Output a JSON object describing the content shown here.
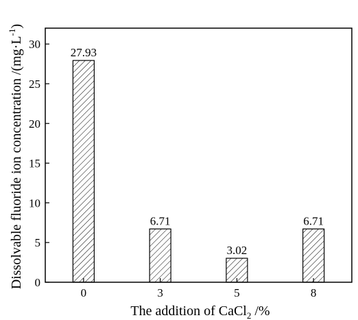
{
  "chart_data": {
    "type": "bar",
    "categories": [
      "0",
      "3",
      "5",
      "8"
    ],
    "values": [
      27.93,
      6.71,
      3.02,
      6.71
    ],
    "data_labels": [
      "27.93",
      "6.71",
      "3.02",
      "6.71"
    ],
    "title": "",
    "xlabel": {
      "prefix": "The addition of CaCl",
      "subscript": "2",
      "suffix": " /%"
    },
    "ylabel": {
      "main": "Dissolvable fluoride ion concentration /(mg·L",
      "superscript": "-1",
      "close": ")"
    },
    "ylim": [
      0,
      32
    ],
    "yticks": [
      "0",
      "5",
      "10",
      "15",
      "20",
      "25",
      "30"
    ],
    "bar_fill": "hatched",
    "grid": false,
    "legend": "none"
  }
}
